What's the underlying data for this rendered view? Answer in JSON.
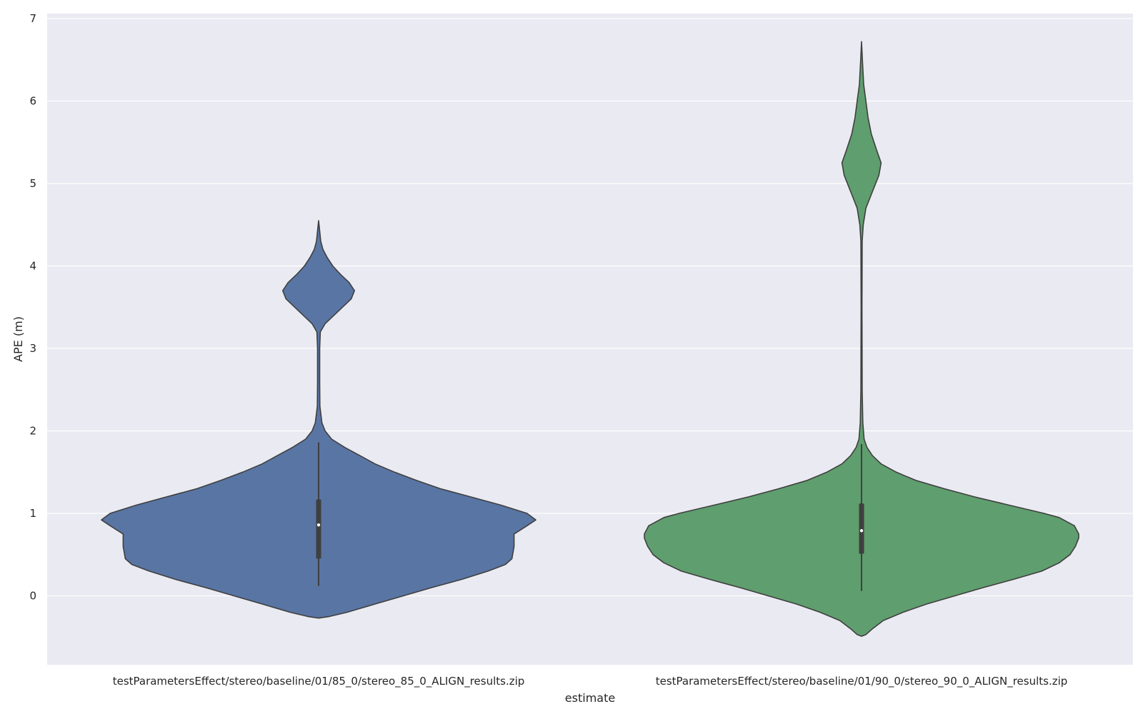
{
  "chart_data": {
    "type": "violin",
    "title": "",
    "xlabel": "estimate",
    "ylabel": "APE (m)",
    "ylim": [
      -0.85,
      7.05
    ],
    "yticks": [
      0,
      1,
      2,
      3,
      4,
      5,
      6,
      7
    ],
    "grid": true,
    "categories": [
      "testParametersEffect/stereo/baseline/01/85_0/stereo_85_0_ALIGN_results.zip",
      "testParametersEffect/stereo/baseline/01/90_0/stereo_90_0_ALIGN_results.zip"
    ],
    "series": [
      {
        "name": "testParametersEffect/stereo/baseline/01/85_0/stereo_85_0_ALIGN_results.zip",
        "color": "#5975a4",
        "box": {
          "whisker_low": 0.12,
          "q1": 0.45,
          "median": 0.86,
          "q3": 1.17,
          "whisker_high": 1.86
        },
        "density": [
          [
            -0.27,
            0.0
          ],
          [
            -0.25,
            0.05
          ],
          [
            -0.2,
            0.13
          ],
          [
            -0.1,
            0.26
          ],
          [
            0.0,
            0.39
          ],
          [
            0.1,
            0.52
          ],
          [
            0.2,
            0.66
          ],
          [
            0.3,
            0.78
          ],
          [
            0.38,
            0.86
          ],
          [
            0.45,
            0.89
          ],
          [
            0.6,
            0.9
          ],
          [
            0.75,
            0.9
          ],
          [
            0.85,
            0.96
          ],
          [
            0.92,
            1.0
          ],
          [
            1.0,
            0.96
          ],
          [
            1.1,
            0.84
          ],
          [
            1.2,
            0.7
          ],
          [
            1.3,
            0.56
          ],
          [
            1.4,
            0.45
          ],
          [
            1.5,
            0.35
          ],
          [
            1.6,
            0.26
          ],
          [
            1.7,
            0.19
          ],
          [
            1.8,
            0.12
          ],
          [
            1.9,
            0.06
          ],
          [
            2.0,
            0.03
          ],
          [
            2.1,
            0.015
          ],
          [
            2.3,
            0.006
          ],
          [
            2.6,
            0.005
          ],
          [
            3.0,
            0.005
          ],
          [
            3.2,
            0.008
          ],
          [
            3.3,
            0.03
          ],
          [
            3.4,
            0.07
          ],
          [
            3.5,
            0.11
          ],
          [
            3.6,
            0.15
          ],
          [
            3.7,
            0.165
          ],
          [
            3.8,
            0.14
          ],
          [
            3.9,
            0.1
          ],
          [
            4.0,
            0.065
          ],
          [
            4.1,
            0.04
          ],
          [
            4.2,
            0.02
          ],
          [
            4.3,
            0.01
          ],
          [
            4.45,
            0.004
          ],
          [
            4.55,
            0.0
          ]
        ]
      },
      {
        "name": "testParametersEffect/stereo/baseline/01/90_0/stereo_90_0_ALIGN_results.zip",
        "color": "#5f9e6e",
        "box": {
          "whisker_low": 0.06,
          "q1": 0.51,
          "median": 0.79,
          "q3": 1.12,
          "whisker_high": 1.84
        },
        "density": [
          [
            -0.49,
            0.0
          ],
          [
            -0.47,
            0.02
          ],
          [
            -0.4,
            0.05
          ],
          [
            -0.3,
            0.1
          ],
          [
            -0.2,
            0.19
          ],
          [
            -0.1,
            0.3
          ],
          [
            0.0,
            0.43
          ],
          [
            0.1,
            0.56
          ],
          [
            0.2,
            0.7
          ],
          [
            0.3,
            0.83
          ],
          [
            0.4,
            0.91
          ],
          [
            0.5,
            0.96
          ],
          [
            0.6,
            0.985
          ],
          [
            0.7,
            1.0
          ],
          [
            0.75,
            1.0
          ],
          [
            0.85,
            0.98
          ],
          [
            0.95,
            0.91
          ],
          [
            1.0,
            0.84
          ],
          [
            1.1,
            0.68
          ],
          [
            1.2,
            0.52
          ],
          [
            1.3,
            0.38
          ],
          [
            1.4,
            0.25
          ],
          [
            1.5,
            0.16
          ],
          [
            1.6,
            0.09
          ],
          [
            1.7,
            0.05
          ],
          [
            1.8,
            0.025
          ],
          [
            1.9,
            0.012
          ],
          [
            2.1,
            0.006
          ],
          [
            2.5,
            0.003
          ],
          [
            3.5,
            0.002
          ],
          [
            4.3,
            0.003
          ],
          [
            4.5,
            0.008
          ],
          [
            4.7,
            0.02
          ],
          [
            4.9,
            0.05
          ],
          [
            5.1,
            0.08
          ],
          [
            5.25,
            0.09
          ],
          [
            5.4,
            0.07
          ],
          [
            5.6,
            0.045
          ],
          [
            5.8,
            0.03
          ],
          [
            6.0,
            0.02
          ],
          [
            6.2,
            0.01
          ],
          [
            6.5,
            0.004
          ],
          [
            6.72,
            0.0
          ]
        ]
      }
    ]
  }
}
